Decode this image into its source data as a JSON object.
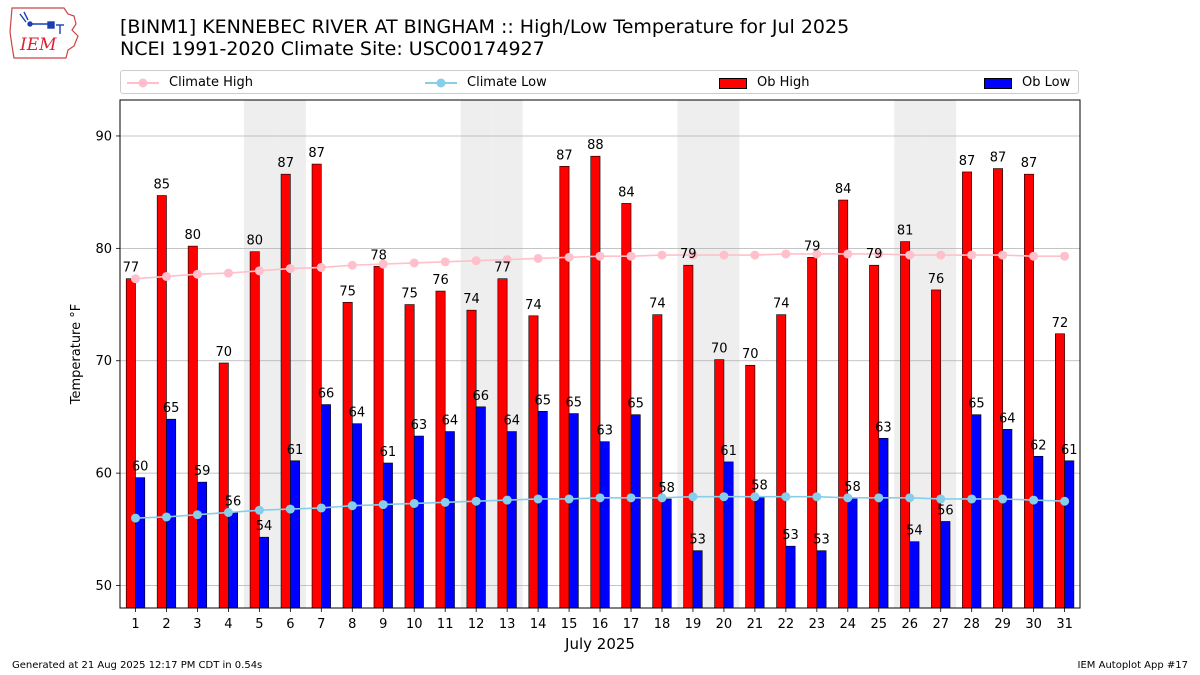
{
  "header": {
    "logo_text": "IEM",
    "title_line1": "[BINM1] KENNEBEC RIVER  AT BINGHAM :: High/Low Temperature for Jul 2025",
    "title_line2": "NCEI 1991-2020 Climate Site: USC00174927"
  },
  "legend": {
    "climate_high": "Climate High",
    "climate_low": "Climate Low",
    "ob_high": "Ob High",
    "ob_low": "Ob Low"
  },
  "footer": {
    "generated": "Generated at 21 Aug 2025 12:17 PM CDT in 0.54s",
    "app": "IEM Autoplot App #17"
  },
  "colors": {
    "ob_high": "#ff0000",
    "ob_low": "#0000ff",
    "climate_high": "#ffc0cb",
    "climate_low": "#87ceeb",
    "weekend_shade": "#eeeeee"
  },
  "chart_data": {
    "type": "bar",
    "xlabel": "July 2025",
    "ylabel": "Temperature °F",
    "ylim": [
      48,
      93.2
    ],
    "yticks": [
      50,
      60,
      70,
      80,
      90
    ],
    "grid": true,
    "legend_position": "top",
    "categories": [
      "1",
      "2",
      "3",
      "4",
      "5",
      "6",
      "7",
      "8",
      "9",
      "10",
      "11",
      "12",
      "13",
      "14",
      "15",
      "16",
      "17",
      "18",
      "19",
      "20",
      "21",
      "22",
      "23",
      "24",
      "25",
      "26",
      "27",
      "28",
      "29",
      "30",
      "31"
    ],
    "shaded_days": [
      5,
      6,
      12,
      13,
      19,
      20,
      26,
      27
    ],
    "series": [
      {
        "name": "Ob High",
        "kind": "bar",
        "values": [
          77,
          85,
          80,
          70,
          80,
          87,
          87,
          75,
          78,
          75,
          76,
          74,
          77,
          74,
          87,
          88,
          84,
          74,
          79,
          70,
          70,
          74,
          79,
          84,
          79,
          81,
          76,
          87,
          87,
          87,
          72
        ],
        "plotted": [
          77.3,
          84.7,
          80.2,
          69.8,
          79.7,
          86.6,
          87.5,
          75.2,
          78.4,
          75.0,
          76.2,
          74.5,
          77.3,
          74.0,
          87.3,
          88.2,
          84.0,
          74.1,
          78.5,
          70.1,
          69.6,
          74.1,
          79.2,
          84.3,
          78.5,
          80.6,
          76.3,
          86.8,
          87.1,
          86.6,
          72.4
        ]
      },
      {
        "name": "Ob Low",
        "kind": "bar",
        "values": [
          60,
          65,
          59,
          56,
          54,
          61,
          66,
          64,
          61,
          63,
          64,
          66,
          64,
          65,
          65,
          63,
          65,
          58,
          53,
          61,
          58,
          53,
          53,
          58,
          63,
          54,
          56,
          65,
          64,
          62,
          61
        ],
        "plotted": [
          59.6,
          64.8,
          59.2,
          56.5,
          54.3,
          61.1,
          66.1,
          64.4,
          60.9,
          63.3,
          63.7,
          65.9,
          63.7,
          65.5,
          65.3,
          62.8,
          65.2,
          57.7,
          53.1,
          61.0,
          57.9,
          53.5,
          53.1,
          57.8,
          63.1,
          53.9,
          55.7,
          65.2,
          63.9,
          61.5,
          61.1
        ]
      },
      {
        "name": "Climate High",
        "kind": "line",
        "values": [
          77.3,
          77.5,
          77.7,
          77.8,
          78.0,
          78.2,
          78.3,
          78.5,
          78.6,
          78.7,
          78.8,
          78.9,
          79.0,
          79.1,
          79.2,
          79.3,
          79.3,
          79.4,
          79.4,
          79.4,
          79.4,
          79.5,
          79.5,
          79.5,
          79.5,
          79.4,
          79.4,
          79.4,
          79.4,
          79.3,
          79.3
        ]
      },
      {
        "name": "Climate Low",
        "kind": "line",
        "values": [
          56.0,
          56.1,
          56.3,
          56.5,
          56.7,
          56.8,
          56.9,
          57.1,
          57.2,
          57.3,
          57.4,
          57.5,
          57.6,
          57.7,
          57.7,
          57.8,
          57.8,
          57.8,
          57.9,
          57.9,
          57.9,
          57.9,
          57.9,
          57.8,
          57.8,
          57.8,
          57.7,
          57.7,
          57.7,
          57.6,
          57.5
        ]
      }
    ]
  }
}
